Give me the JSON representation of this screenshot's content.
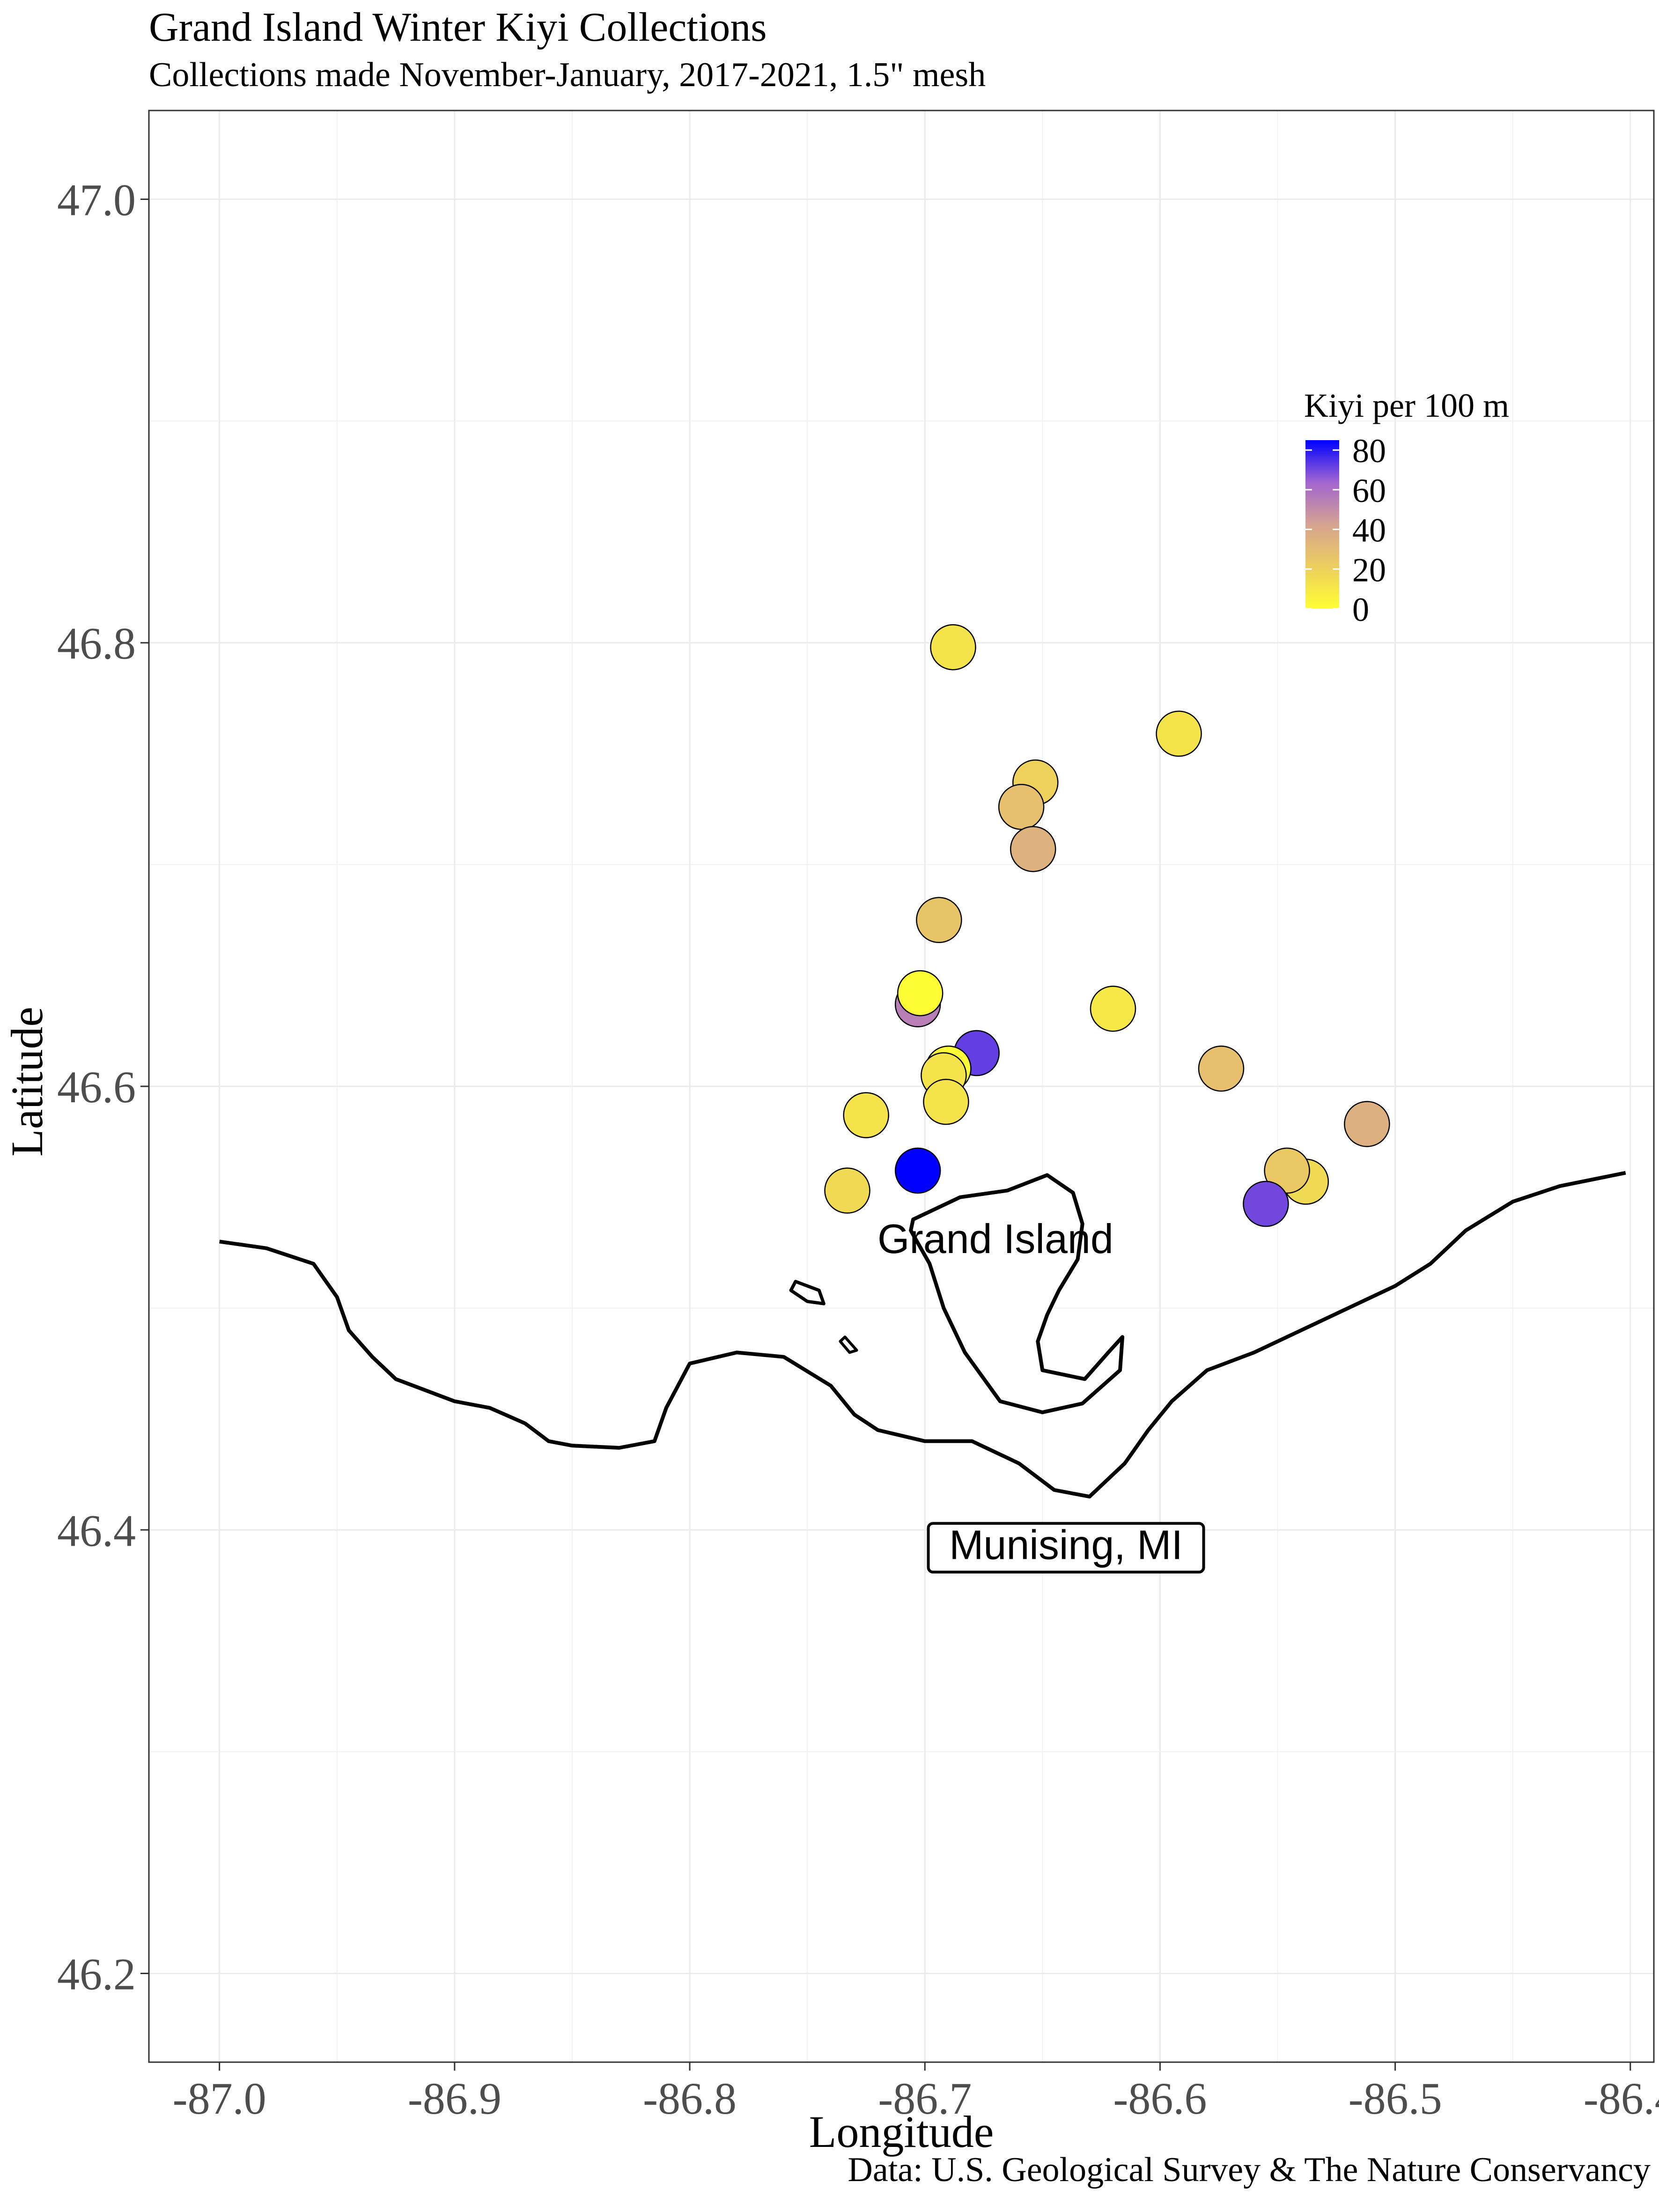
{
  "title": "Grand Island Winter Kiyi Collections",
  "subtitle": "Collections made November-January, 2017-2021, 1.5\" mesh",
  "caption": "Data: U.S. Geological Survey & The Nature Conservancy",
  "chart_data": {
    "type": "scatter",
    "xlabel": "Longitude",
    "ylabel": "Latitude",
    "xlim": [
      -87.03,
      -86.39
    ],
    "ylim": [
      46.16,
      47.04
    ],
    "x_ticks": [
      -87.0,
      -86.9,
      -86.8,
      -86.7,
      -86.6,
      -86.5,
      -86.4
    ],
    "x_tick_labels": [
      "-87.0",
      "-86.9",
      "-86.8",
      "-86.7",
      "-86.6",
      "-86.5",
      "-86.4"
    ],
    "y_ticks": [
      46.2,
      46.4,
      46.6,
      46.8,
      47.0
    ],
    "y_tick_labels": [
      "46.2",
      "46.4",
      "46.6",
      "46.8",
      "47.0"
    ],
    "grid": true,
    "legend": {
      "title": "Kiyi per 100 m",
      "placement": "top-right",
      "scale": "continuous",
      "range": [
        0,
        85
      ],
      "ticks": [
        0,
        20,
        40,
        60,
        80
      ],
      "tick_labels": [
        "0",
        "20",
        "40",
        "60",
        "80"
      ],
      "low_color": "#ffff33",
      "high_color": "#0000ff"
    },
    "points": [
      {
        "lon": -86.688,
        "lat": 46.798,
        "kiyi": 12
      },
      {
        "lon": -86.592,
        "lat": 46.759,
        "kiyi": 12
      },
      {
        "lon": -86.653,
        "lat": 46.737,
        "kiyi": 20
      },
      {
        "lon": -86.659,
        "lat": 46.726,
        "kiyi": 28
      },
      {
        "lon": -86.654,
        "lat": 46.707,
        "kiyi": 35
      },
      {
        "lon": -86.694,
        "lat": 46.675,
        "kiyi": 26
      },
      {
        "lon": -86.62,
        "lat": 46.635,
        "kiyi": 10
      },
      {
        "lon": -86.703,
        "lat": 46.637,
        "kiyi": 55
      },
      {
        "lon": -86.702,
        "lat": 46.642,
        "kiyi": 1
      },
      {
        "lon": -86.678,
        "lat": 46.615,
        "kiyi": 72
      },
      {
        "lon": -86.69,
        "lat": 46.608,
        "kiyi": 2
      },
      {
        "lon": -86.692,
        "lat": 46.605,
        "kiyi": 12
      },
      {
        "lon": -86.574,
        "lat": 46.608,
        "kiyi": 28
      },
      {
        "lon": -86.691,
        "lat": 46.593,
        "kiyi": 12
      },
      {
        "lon": -86.725,
        "lat": 46.587,
        "kiyi": 12
      },
      {
        "lon": -86.512,
        "lat": 46.583,
        "kiyi": 36
      },
      {
        "lon": -86.703,
        "lat": 46.562,
        "kiyi": 85
      },
      {
        "lon": -86.538,
        "lat": 46.557,
        "kiyi": 16
      },
      {
        "lon": -86.546,
        "lat": 46.562,
        "kiyi": 24
      },
      {
        "lon": -86.733,
        "lat": 46.553,
        "kiyi": 16
      },
      {
        "lon": -86.555,
        "lat": 46.547,
        "kiyi": 70
      }
    ],
    "annotations": [
      {
        "text": "Grand Island",
        "lon": -86.67,
        "lat": 46.527,
        "boxed": false
      },
      {
        "text": "Munising, MI",
        "lon": -86.64,
        "lat": 46.389,
        "boxed": true
      }
    ],
    "shoreline_lon_lat": [
      [
        -87.0,
        46.53
      ],
      [
        -86.98,
        46.527
      ],
      [
        -86.96,
        46.52
      ],
      [
        -86.95,
        46.505
      ],
      [
        -86.945,
        46.49
      ],
      [
        -86.935,
        46.478
      ],
      [
        -86.925,
        46.468
      ],
      [
        -86.9,
        46.458
      ],
      [
        -86.885,
        46.455
      ],
      [
        -86.87,
        46.448
      ],
      [
        -86.86,
        46.44
      ],
      [
        -86.85,
        46.438
      ],
      [
        -86.83,
        46.437
      ],
      [
        -86.815,
        46.44
      ],
      [
        -86.81,
        46.455
      ],
      [
        -86.8,
        46.475
      ],
      [
        -86.78,
        46.48
      ],
      [
        -86.76,
        46.478
      ],
      [
        -86.74,
        46.465
      ],
      [
        -86.73,
        46.452
      ],
      [
        -86.72,
        46.445
      ],
      [
        -86.7,
        46.44
      ],
      [
        -86.68,
        46.44
      ],
      [
        -86.66,
        46.43
      ],
      [
        -86.645,
        46.418
      ],
      [
        -86.63,
        46.415
      ],
      [
        -86.615,
        46.43
      ],
      [
        -86.605,
        46.445
      ],
      [
        -86.595,
        46.458
      ],
      [
        -86.58,
        46.472
      ],
      [
        -86.56,
        46.48
      ],
      [
        -86.54,
        46.49
      ],
      [
        -86.52,
        46.5
      ],
      [
        -86.5,
        46.51
      ],
      [
        -86.485,
        46.52
      ],
      [
        -86.47,
        46.535
      ],
      [
        -86.45,
        46.548
      ],
      [
        -86.43,
        46.555
      ],
      [
        -86.402,
        46.561
      ]
    ],
    "grand_island_lon_lat": [
      [
        -86.705,
        46.54
      ],
      [
        -86.685,
        46.55
      ],
      [
        -86.665,
        46.553
      ],
      [
        -86.648,
        46.56
      ],
      [
        -86.637,
        46.552
      ],
      [
        -86.633,
        46.538
      ],
      [
        -86.635,
        46.522
      ],
      [
        -86.643,
        46.508
      ],
      [
        -86.648,
        46.497
      ],
      [
        -86.652,
        46.485
      ],
      [
        -86.65,
        46.472
      ],
      [
        -86.632,
        46.468
      ],
      [
        -86.622,
        46.48
      ],
      [
        -86.616,
        46.487
      ],
      [
        -86.617,
        46.472
      ],
      [
        -86.633,
        46.457
      ],
      [
        -86.65,
        46.453
      ],
      [
        -86.668,
        46.458
      ],
      [
        -86.683,
        46.48
      ],
      [
        -86.692,
        46.5
      ],
      [
        -86.698,
        46.52
      ],
      [
        -86.706,
        46.535
      ]
    ],
    "small_islet_lon_lat": [
      [
        -86.755,
        46.512
      ],
      [
        -86.745,
        46.508
      ],
      [
        -86.743,
        46.502
      ],
      [
        -86.75,
        46.503
      ],
      [
        -86.757,
        46.508
      ]
    ],
    "tiny_islet_lon_lat": [
      [
        -86.734,
        46.487
      ],
      [
        -86.729,
        46.481
      ],
      [
        -86.732,
        46.48
      ],
      [
        -86.736,
        46.485
      ]
    ]
  }
}
